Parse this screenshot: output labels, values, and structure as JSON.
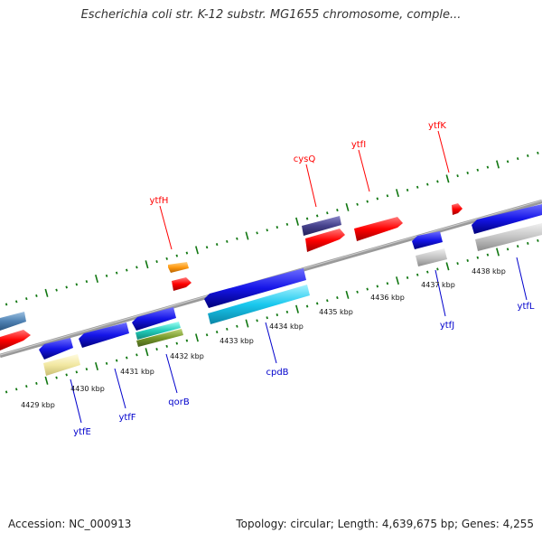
{
  "title": "Escherichia coli str. K-12 substr. MG1655 chromosome, comple...",
  "footer": {
    "accession": "Accession: NC_000913",
    "summary": "Topology: circular; Length: 4,639,675 bp; Genes: 4,255"
  },
  "colors": {
    "forward_label": "#ff0000",
    "reverse_label": "#0000cc",
    "backbone": "#888888",
    "tick": "#117711"
  },
  "ruler": {
    "unit": "kbp",
    "tick_labels": [
      "4429 kbp",
      "4430 kbp",
      "4431 kbp",
      "4432 kbp",
      "4433 kbp",
      "4434 kbp",
      "4435 kbp",
      "4436 kbp",
      "4437 kbp",
      "4438 kbp"
    ]
  },
  "genes_forward": [
    {
      "name": "ytfH",
      "color": "#ff0000"
    },
    {
      "name": "cysQ",
      "color": "#ff0000"
    },
    {
      "name": "ytfI",
      "color": "#ff0000"
    },
    {
      "name": "ytfK",
      "color": "#ff0000"
    }
  ],
  "genes_reverse": [
    {
      "name": "ytfE",
      "color": "#0000cc"
    },
    {
      "name": "ytfF",
      "color": "#0000cc"
    },
    {
      "name": "qorB",
      "color": "#0000cc"
    },
    {
      "name": "cpdB",
      "color": "#0000cc"
    },
    {
      "name": "ytfJ",
      "color": "#0000cc"
    },
    {
      "name": "ytfL",
      "color": "#0000cc"
    }
  ]
}
